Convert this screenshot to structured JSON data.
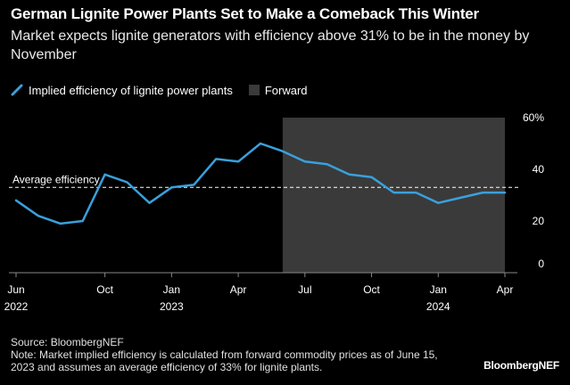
{
  "header": {
    "title": "German Lignite Power Plants Set to Make a Comeback This Winter",
    "subtitle": "Market expects lignite generators with efficiency above 31% to be in the money by November"
  },
  "colors": {
    "background": "#000000",
    "line": "#3aa0dc",
    "forward_band": "#3a3a3a",
    "text": "#ffffff",
    "reference": "#ffffff"
  },
  "chart_data": {
    "type": "line",
    "title": "German Lignite Power Plants Set to Make a Comeback This Winter",
    "subtitle": "Market expects lignite generators with efficiency above 31% to be in the money by November",
    "legend": [
      "Implied efficiency of lignite power plants",
      "Forward"
    ],
    "legend_position": "top-left",
    "series": [
      {
        "name": "Implied efficiency of lignite power plants",
        "x": [
          "2022-06",
          "2022-07",
          "2022-08",
          "2022-09",
          "2022-10",
          "2022-11",
          "2022-12",
          "2023-01",
          "2023-02",
          "2023-03",
          "2023-04",
          "2023-05",
          "2023-06",
          "2023-07",
          "2023-08",
          "2023-09",
          "2023-10",
          "2023-11",
          "2023-12",
          "2024-01",
          "2024-02",
          "2024-03",
          "2024-04"
        ],
        "values": [
          28,
          22,
          19,
          20,
          38,
          35,
          27,
          33,
          34,
          44,
          43,
          50,
          47,
          43,
          42,
          38,
          37,
          31,
          31,
          27,
          29,
          31,
          31
        ]
      }
    ],
    "forward_range": [
      "2023-06",
      "2024-04"
    ],
    "reference_lines": [
      {
        "label": "Average efficiency",
        "value": 33
      }
    ],
    "x_axis": {
      "range": [
        "2022-06",
        "2024-04"
      ],
      "ticks": [
        {
          "month": "2022-06",
          "label": "Jun",
          "year": "2022"
        },
        {
          "month": "2022-10",
          "label": "Oct",
          "year": ""
        },
        {
          "month": "2023-01",
          "label": "Jan",
          "year": "2023"
        },
        {
          "month": "2023-04",
          "label": "Apr",
          "year": ""
        },
        {
          "month": "2023-07",
          "label": "Jul",
          "year": ""
        },
        {
          "month": "2023-10",
          "label": "Oct",
          "year": ""
        },
        {
          "month": "2024-01",
          "label": "Jan",
          "year": "2024"
        },
        {
          "month": "2024-04",
          "label": "Apr",
          "year": ""
        }
      ]
    },
    "y_axis": {
      "range": [
        0,
        60
      ],
      "ticks": [
        {
          "value": 0,
          "label": "0"
        },
        {
          "value": 20,
          "label": "20"
        },
        {
          "value": 40,
          "label": "40"
        },
        {
          "value": 60,
          "label": "60%"
        }
      ],
      "position": "right"
    },
    "grid": false
  },
  "footer": {
    "source": "Source: BloombergNEF",
    "note": "Note: Market implied efficiency is calculated from forward commodity prices as of June 15, 2023 and assumes an average efficiency of 33% for lignite plants.",
    "brand": "BloombergNEF"
  }
}
